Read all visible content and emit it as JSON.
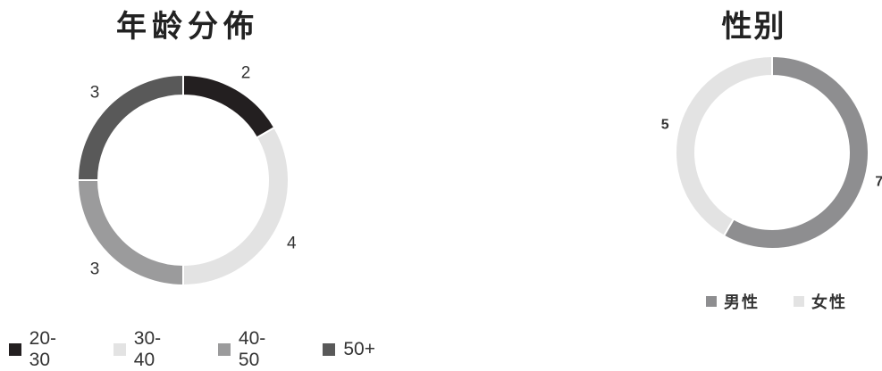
{
  "chart_data": [
    {
      "type": "pie",
      "title": "年龄分佈",
      "categories": [
        "20-30",
        "30-40",
        "40-50",
        "50+"
      ],
      "values": [
        2,
        4,
        3,
        3
      ],
      "colors": [
        "#231f20",
        "#e3e3e3",
        "#9b9b9c",
        "#595959"
      ],
      "legend": "bottom-left",
      "donut": true
    },
    {
      "type": "pie",
      "title": "性别",
      "categories": [
        "男性",
        "女性"
      ],
      "values": [
        7,
        5
      ],
      "colors": [
        "#8e8e90",
        "#e3e3e3"
      ],
      "legend": "bottom",
      "donut": true
    }
  ]
}
